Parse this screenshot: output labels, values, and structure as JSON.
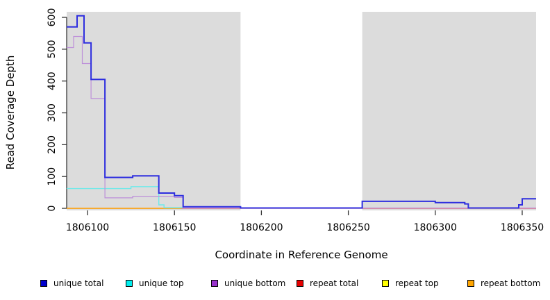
{
  "chart_data": {
    "type": "line",
    "step": true,
    "title": "",
    "xlabel": "Coordinate in Reference Genome",
    "ylabel": "Read Coverage Depth",
    "x_range": [
      1806088,
      1806358
    ],
    "ylim": [
      0,
      600
    ],
    "x_ticks": [
      1806100,
      1806150,
      1806200,
      1806250,
      1806300,
      1806350
    ],
    "y_ticks": [
      0,
      100,
      200,
      300,
      400,
      500,
      600
    ],
    "grid": false,
    "legend_position": "bottom",
    "shade_color": "#DCDCDC",
    "shaded_regions": [
      {
        "x0": 1806088,
        "x1": 1806188
      },
      {
        "x0": 1806258,
        "x1": 1806358
      }
    ],
    "series": [
      {
        "name": "repeat top",
        "line_color": "#FFFF00",
        "width": 1,
        "points": [
          [
            1806088,
            0
          ],
          [
            1806358,
            0
          ]
        ]
      },
      {
        "name": "repeat total",
        "line_color": "#E25565",
        "width": 1.2,
        "points": [
          [
            1806088,
            0
          ],
          [
            1806358,
            0
          ]
        ]
      },
      {
        "name": "repeat bottom",
        "line_color": "#FFA500",
        "width": 1.5,
        "points": [
          [
            1806088,
            0
          ],
          [
            1806154,
            0
          ]
        ]
      },
      {
        "name": "unique top",
        "line_color": "#6FE9E9",
        "width": 1.4,
        "points": [
          [
            1806088,
            62
          ],
          [
            1806125,
            68
          ],
          [
            1806141,
            11
          ],
          [
            1806144,
            2
          ],
          [
            1806155,
            2
          ]
        ]
      },
      {
        "name": "unique bottom",
        "line_color": "#BD8FD9",
        "width": 1.2,
        "points": [
          [
            1806088,
            505
          ],
          [
            1806092,
            540
          ],
          [
            1806097,
            455
          ],
          [
            1806102,
            345
          ],
          [
            1806110,
            33
          ],
          [
            1806126,
            38
          ],
          [
            1806150,
            34
          ],
          [
            1806155,
            1
          ],
          [
            1806358,
            1
          ]
        ]
      },
      {
        "name": "unique total",
        "line_color": "#2E2EDF",
        "width": 2,
        "points": [
          [
            1806088,
            570
          ],
          [
            1806094,
            605
          ],
          [
            1806098,
            520
          ],
          [
            1806102,
            405
          ],
          [
            1806110,
            97
          ],
          [
            1806126,
            102
          ],
          [
            1806141,
            48
          ],
          [
            1806150,
            40
          ],
          [
            1806155,
            5
          ],
          [
            1806188,
            1
          ],
          [
            1806258,
            22
          ],
          [
            1806300,
            18
          ],
          [
            1806317,
            14
          ],
          [
            1806319,
            1
          ],
          [
            1806348,
            11
          ],
          [
            1806350,
            30
          ],
          [
            1806358,
            30
          ]
        ]
      }
    ],
    "legend_items": [
      {
        "label": "unique total",
        "color": "#0000CD"
      },
      {
        "label": "unique top",
        "color": "#00EEEE"
      },
      {
        "label": "unique bottom",
        "color": "#9932CC"
      },
      {
        "label": "repeat total",
        "color": "#E50000"
      },
      {
        "label": "repeat top",
        "color": "#FFFF00"
      },
      {
        "label": "repeat bottom",
        "color": "#FFA500"
      }
    ]
  }
}
